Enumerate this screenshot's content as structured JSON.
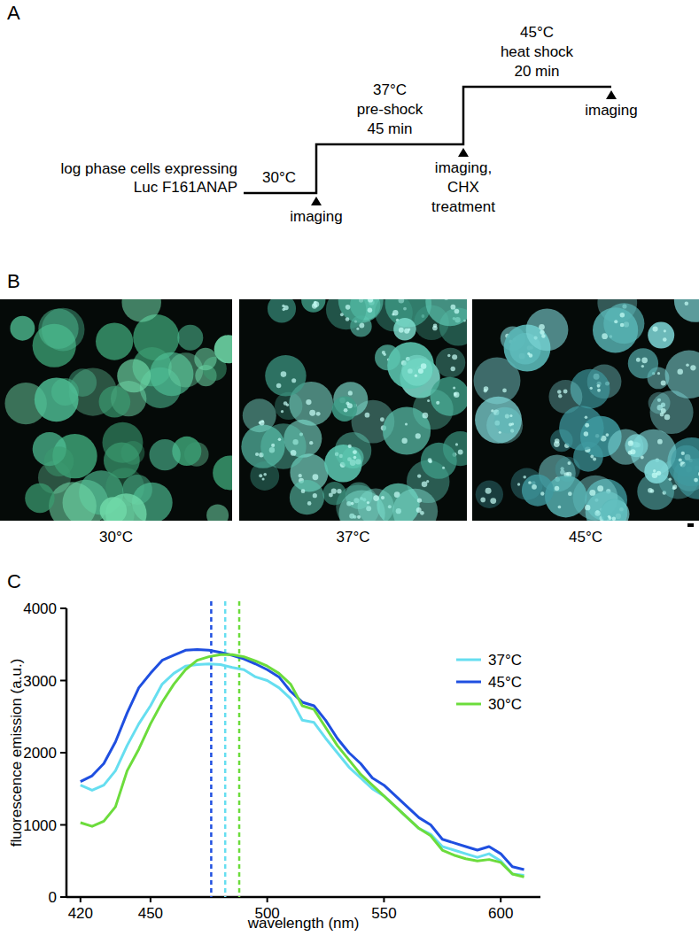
{
  "panel_a": {
    "label": "A",
    "start_text": [
      "log phase cells expressing",
      "Luc F161ANAP"
    ],
    "steps": [
      [
        "30°C"
      ],
      [
        "37°C",
        "pre-shock",
        "45 min"
      ],
      [
        "45°C",
        "heat shock",
        "20 min"
      ]
    ],
    "events": [
      [
        "imaging"
      ],
      [
        "imaging,",
        "CHX",
        "treatment"
      ],
      [
        "imaging"
      ]
    ]
  },
  "panel_b": {
    "label": "B",
    "images": [
      "30°C",
      "37°C",
      "45°C"
    ]
  },
  "chart_data": {
    "type": "line",
    "panel_label": "C",
    "x_label": "wavelength (nm)",
    "y_label": "fluorescence emission (a.u.)",
    "x": [
      420,
      425,
      430,
      435,
      440,
      445,
      450,
      455,
      460,
      465,
      470,
      475,
      480,
      485,
      490,
      495,
      500,
      505,
      510,
      515,
      520,
      525,
      530,
      535,
      540,
      545,
      550,
      555,
      560,
      565,
      570,
      575,
      580,
      585,
      590,
      595,
      600,
      605,
      610
    ],
    "xlim": [
      414,
      617
    ],
    "xticks": [
      420,
      450,
      500,
      550,
      600
    ],
    "ylim": [
      0,
      4000
    ],
    "yticks": [
      0,
      1000,
      2000,
      3000,
      4000
    ],
    "grid": false,
    "legend": "upper right",
    "line_style": "solid",
    "series": [
      {
        "name": "37°C",
        "color": "#66def0",
        "peak": 482,
        "values": [
          1550,
          1480,
          1550,
          1750,
          2100,
          2400,
          2650,
          2950,
          3100,
          3200,
          3220,
          3230,
          3220,
          3180,
          3150,
          3050,
          3000,
          2900,
          2750,
          2450,
          2420,
          2200,
          2000,
          1800,
          1650,
          1500,
          1400,
          1250,
          1100,
          950,
          870,
          700,
          650,
          600,
          550,
          600,
          500,
          320,
          300
        ]
      },
      {
        "name": "45°C",
        "color": "#1f4fe0",
        "peak": 476,
        "values": [
          1600,
          1680,
          1850,
          2150,
          2550,
          2900,
          3100,
          3280,
          3350,
          3420,
          3430,
          3420,
          3390,
          3350,
          3300,
          3230,
          3150,
          3050,
          2850,
          2700,
          2650,
          2450,
          2200,
          2000,
          1850,
          1650,
          1550,
          1400,
          1250,
          1100,
          1000,
          800,
          750,
          700,
          650,
          700,
          600,
          420,
          380
        ]
      },
      {
        "name": "30°C",
        "color": "#6cdc3c",
        "peak": 488,
        "values": [
          1030,
          980,
          1050,
          1250,
          1750,
          2050,
          2400,
          2700,
          2950,
          3150,
          3280,
          3330,
          3360,
          3360,
          3330,
          3270,
          3200,
          3100,
          2950,
          2650,
          2600,
          2350,
          2100,
          1900,
          1700,
          1550,
          1400,
          1250,
          1100,
          950,
          850,
          650,
          580,
          530,
          500,
          520,
          480,
          320,
          280
        ]
      }
    ]
  }
}
